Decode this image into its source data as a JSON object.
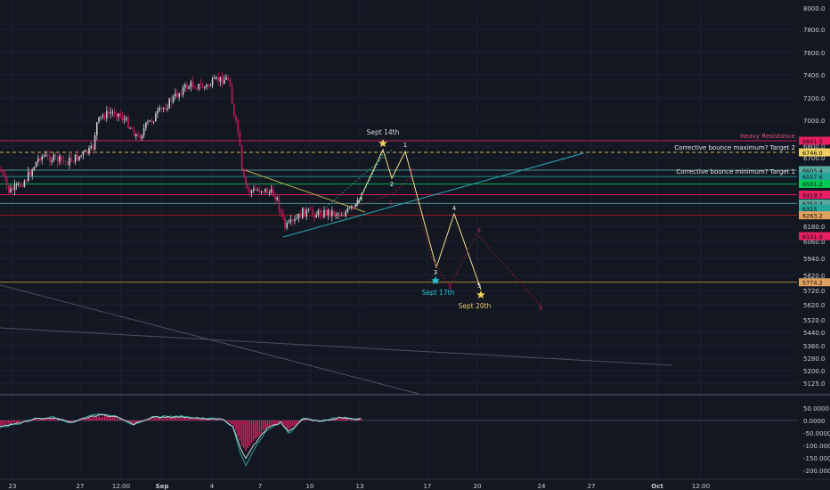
{
  "chart_data": {
    "type": "candlestick",
    "panels": [
      "price",
      "oscillator"
    ],
    "y_ticks": [
      8000,
      7800,
      7600,
      7400,
      7200,
      7000,
      6800,
      6700,
      6180,
      6060,
      5940,
      5820,
      5720,
      5620,
      5520,
      5440,
      5360,
      5280,
      5200,
      5125
    ],
    "y_tick_labels": [
      "8000.0",
      "7800.0",
      "7600.0",
      "7400.0",
      "7200.0",
      "7000.0",
      "6800.0",
      "6700.0",
      "6180.0",
      "6060.0",
      "5940.0",
      "5820.0",
      "5720.0",
      "5620.0",
      "5520.0",
      "5440.0",
      "5360.0",
      "5280.0",
      "5200.0",
      "5125.0"
    ],
    "x_ticks": [
      "23",
      "27",
      "12:00",
      "Sep",
      "4",
      "7",
      "10",
      "13",
      "17",
      "20",
      "24",
      "27",
      "Oct",
      "12:00"
    ],
    "price_axis_tags": [
      {
        "label": "6841.5",
        "price": 6841.5,
        "color": "#e91e63"
      },
      {
        "label": "6746.0",
        "price": 6746,
        "color": "#f0d060"
      },
      {
        "label": "6605.4",
        "price": 6605.4,
        "color": "#5aa9a0"
      },
      {
        "label": "6557.6",
        "price": 6557.6,
        "color": "#26a69a"
      },
      {
        "label": "6501.2",
        "price": 6501.2,
        "color": "#00c853"
      },
      {
        "label": "6419.7",
        "price": 6419.7,
        "color": "#e91e63"
      },
      {
        "label": "6353.4",
        "price": 6353.4,
        "color": "#5aa9a0"
      },
      {
        "label": "6315",
        "price": 6315,
        "color": "#26a69a"
      },
      {
        "label": "6263.2",
        "price": 6263.2,
        "color": "#e0a060"
      },
      {
        "label": "6101.9",
        "price": 6101.9,
        "color": "#e91e63"
      },
      {
        "label": "5774.2",
        "price": 5774.2,
        "color": "#e0a060"
      }
    ],
    "horizontal_levels": [
      {
        "price": 6841.5,
        "color": "#e91e63",
        "style": "solid",
        "label": "Heavy Resistance"
      },
      {
        "price": 6746,
        "color": "#f0d060",
        "style": "dashed",
        "label": "Corrective bounce maximum? Target 2"
      },
      {
        "price": 6605.4,
        "color": "#5aa9a0",
        "style": "solid",
        "label": ""
      },
      {
        "price": 6557.6,
        "color": "#26a69a",
        "style": "solid",
        "label": "Corrective bounce minimum? Target 1"
      },
      {
        "price": 6501.2,
        "color": "#00c853",
        "style": "solid",
        "label": ""
      },
      {
        "price": 6419.7,
        "color": "#e91e63",
        "style": "solid",
        "label": ""
      },
      {
        "price": 6353.4,
        "color": "#5aa9a0",
        "style": "solid",
        "label": ""
      },
      {
        "price": 6263.2,
        "color": "#b71c1c",
        "style": "solid",
        "label": ""
      },
      {
        "price": 5774.2,
        "color": "#c79a3a",
        "style": "solid",
        "label": ""
      }
    ],
    "annotations": [
      {
        "text": "Sept 14th",
        "color": "#d9d9d9"
      },
      {
        "text": "Sept 17th",
        "color": "#26c6da"
      },
      {
        "text": "Sept 20th",
        "color": "#e8c96a"
      }
    ],
    "wave_labels": {
      "yellow": [
        "1",
        "2",
        "3",
        "4",
        "5"
      ],
      "red": [
        "1",
        "2",
        "3",
        "4",
        "5"
      ]
    },
    "oscillator": {
      "y_ticks": [
        50,
        0,
        -50,
        -100,
        -150,
        -200
      ],
      "y_tick_labels": [
        "50.0000",
        "0.0000",
        "-50.0000",
        "-100.0000",
        "-150.0000",
        "-200.0000"
      ]
    }
  }
}
